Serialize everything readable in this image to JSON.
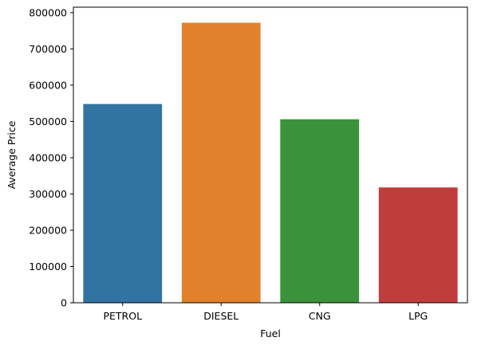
{
  "chart_data": {
    "type": "bar",
    "title": "",
    "xlabel": "Fuel",
    "ylabel": "Average Price",
    "categories": [
      "PETROL",
      "DIESEL",
      "CNG",
      "LPG"
    ],
    "values": [
      548000,
      772000,
      506000,
      318000
    ],
    "colors": [
      "#3274a1",
      "#e1812c",
      "#3a923a",
      "#c03d3e"
    ],
    "ylim": [
      0,
      815000
    ],
    "yticks": [
      0,
      100000,
      200000,
      300000,
      400000,
      500000,
      600000,
      700000,
      800000
    ],
    "ytick_labels": [
      "0",
      "100000",
      "200000",
      "300000",
      "400000",
      "500000",
      "600000",
      "700000",
      "800000"
    ],
    "grid": false,
    "legend": "none"
  }
}
